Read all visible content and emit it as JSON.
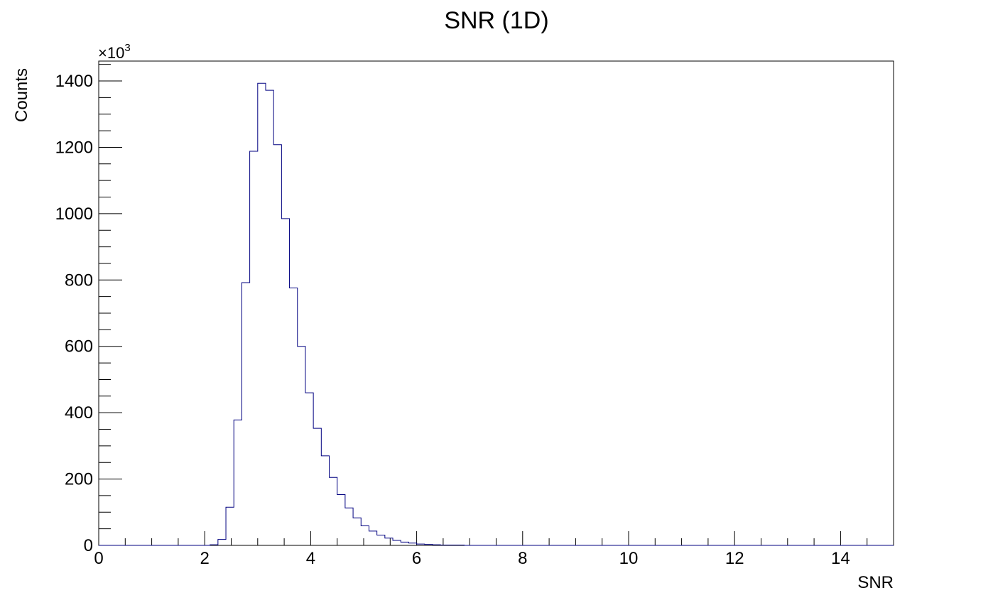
{
  "chart_data": {
    "type": "histogram",
    "title": "SNR (1D)",
    "xlabel": "SNR",
    "ylabel": "Counts",
    "y_multiplier_label": "×10",
    "y_multiplier_exponent": "3",
    "xlim": [
      0,
      15
    ],
    "ylim": [
      0,
      1460
    ],
    "x_ticks": [
      0,
      2,
      4,
      6,
      8,
      10,
      12,
      14
    ],
    "y_ticks": [
      0,
      200,
      400,
      600,
      800,
      1000,
      1200,
      1400
    ],
    "grid": false,
    "line_color": "#000080",
    "bin_width": 0.15,
    "bins_start": 0,
    "values": [
      0,
      0,
      0,
      0,
      0,
      0,
      0,
      0,
      0,
      0,
      0,
      0,
      0,
      0,
      2,
      18,
      115,
      378,
      792,
      1188,
      1393,
      1372,
      1208,
      985,
      776,
      600,
      460,
      353,
      270,
      205,
      153,
      113,
      83,
      59,
      43,
      31,
      22,
      15,
      10,
      7,
      4,
      3,
      2,
      1,
      1,
      1,
      0,
      0,
      0,
      0,
      0,
      0,
      0,
      0,
      0,
      0,
      0,
      0,
      0,
      0,
      0,
      0,
      0,
      0,
      0,
      0,
      0,
      0,
      0,
      0,
      0,
      0,
      0,
      0,
      0,
      0,
      0,
      0,
      0,
      0,
      0,
      0,
      0,
      0,
      0,
      0,
      0,
      0,
      0,
      0,
      0,
      0,
      0,
      0,
      0,
      0,
      0,
      0,
      0,
      0
    ]
  }
}
